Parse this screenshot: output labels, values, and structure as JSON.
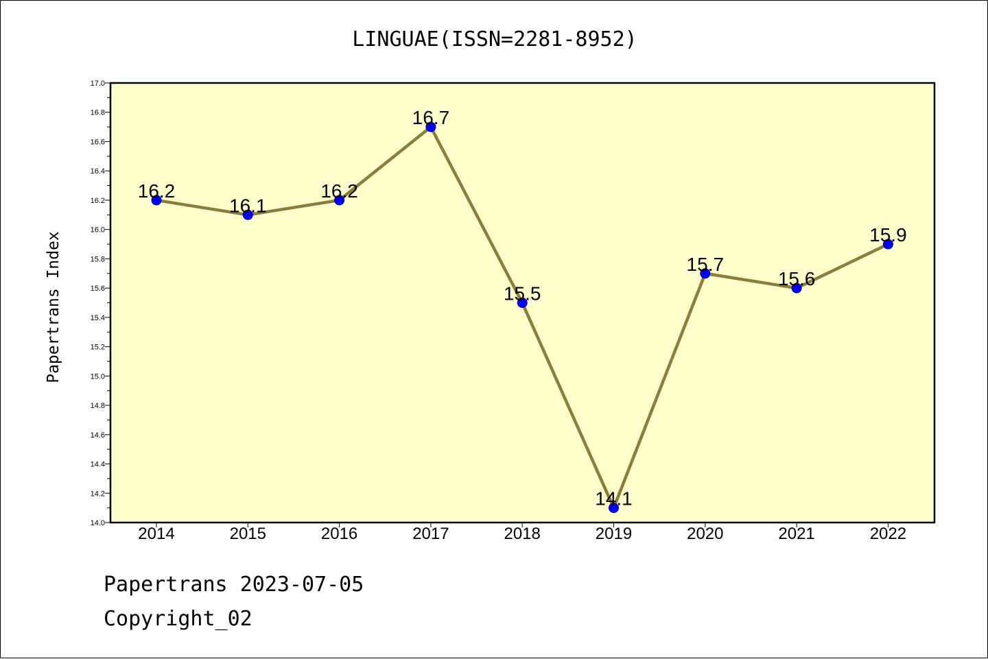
{
  "chart_data": {
    "type": "line",
    "title": "LINGUAE(ISSN=2281-8952)",
    "xlabel": "",
    "ylabel": "Papertrans Index",
    "categories": [
      "2014",
      "2015",
      "2016",
      "2017",
      "2018",
      "2019",
      "2020",
      "2021",
      "2022"
    ],
    "values": [
      16.2,
      16.1,
      16.2,
      16.7,
      15.5,
      14.1,
      15.7,
      15.6,
      15.9
    ],
    "data_labels": [
      "16.2",
      "16.1",
      "16.2",
      "16.7",
      "15.5",
      "14.1",
      "15.7",
      "15.6",
      "15.9"
    ],
    "ylim": [
      14.0,
      17.0
    ],
    "yticks": [
      "14.0",
      "14.2",
      "14.4",
      "14.6",
      "14.8",
      "15.0",
      "15.2",
      "15.4",
      "15.6",
      "15.8",
      "16.0",
      "16.2",
      "16.4",
      "16.6",
      "16.8",
      "17.0"
    ],
    "grid": false,
    "legend": "none",
    "colors": {
      "plot_background": "#ffffcc",
      "line": "#8b7d3a",
      "marker": "#0000ff"
    }
  },
  "footer": {
    "line1": "Papertrans 2023-07-05",
    "line2": "Copyright_02"
  }
}
